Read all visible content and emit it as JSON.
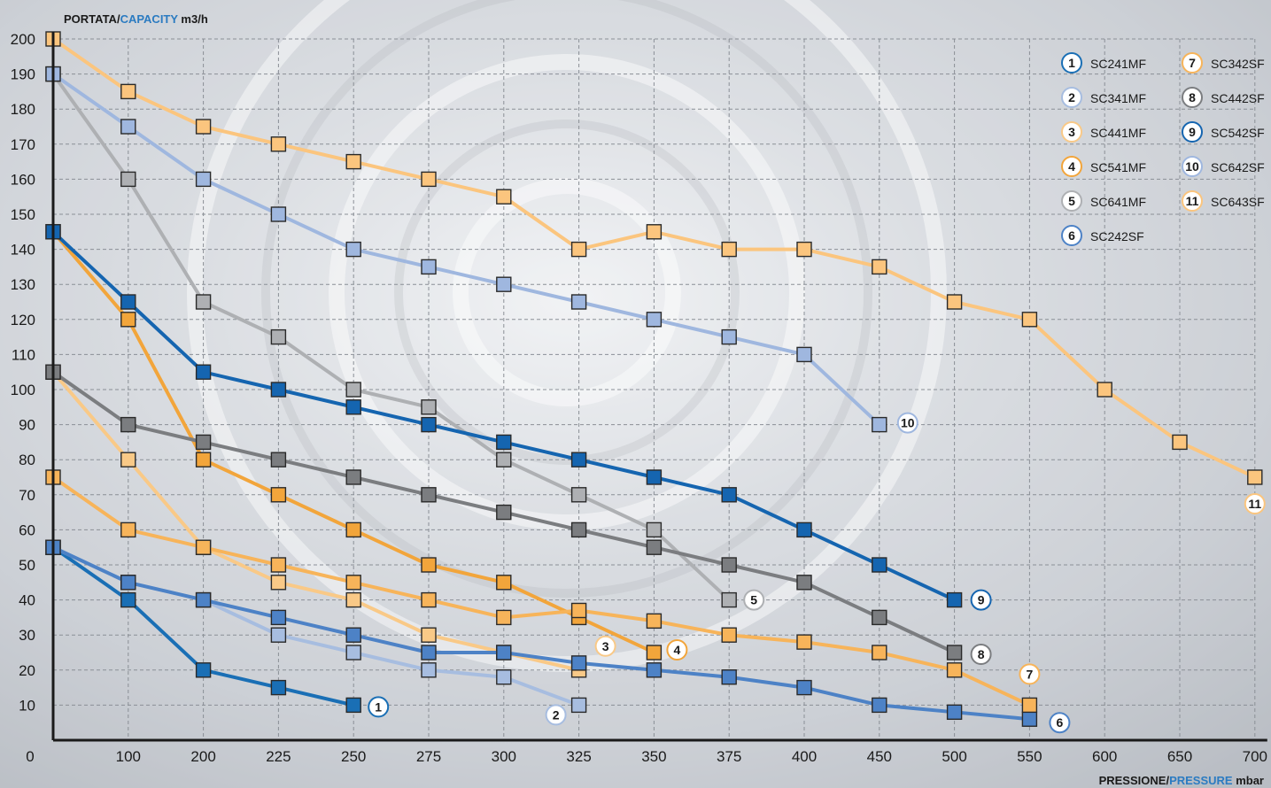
{
  "chart_data": {
    "type": "line",
    "ylabel_parts": [
      "PORTATA",
      "/",
      "CAPACITY",
      " m3/h"
    ],
    "xlabel_parts": [
      "PRESSIONE",
      "/",
      "PRESSURE",
      " mbar"
    ],
    "x_tick_labels": [
      "0",
      "100",
      "200",
      "225",
      "250",
      "275",
      "300",
      "325",
      "350",
      "375",
      "400",
      "450",
      "500",
      "550",
      "600",
      "650",
      "700"
    ],
    "y_ticks": [
      10,
      20,
      30,
      40,
      50,
      60,
      70,
      80,
      90,
      100,
      110,
      120,
      130,
      140,
      150,
      160,
      170,
      180,
      190,
      200
    ],
    "ylim": [
      0,
      200
    ],
    "grid": true,
    "legend_position": "top-right",
    "colors": {
      "accent": "#2b7bc1",
      "axis": "#1a1a1a"
    },
    "series": [
      {
        "name": "SC241MF",
        "number": "1",
        "color": "#1a6fb5",
        "line_width": 4,
        "x": [
          "0",
          "100",
          "200",
          "225",
          "250"
        ],
        "y": [
          55,
          40,
          20,
          15,
          10
        ]
      },
      {
        "name": "SC341MF",
        "number": "2",
        "color": "#a7bde0",
        "line_width": 4,
        "x": [
          "0",
          "100",
          "200",
          "225",
          "250",
          "275",
          "300",
          "325"
        ],
        "y": [
          55,
          45,
          40,
          30,
          25,
          20,
          18,
          10
        ]
      },
      {
        "name": "SC441MF",
        "number": "3",
        "color": "#f9c987",
        "line_width": 4,
        "x": [
          "0",
          "100",
          "200",
          "225",
          "250",
          "275",
          "300",
          "325"
        ],
        "y": [
          105,
          80,
          55,
          45,
          40,
          30,
          25,
          20
        ]
      },
      {
        "name": "SC541MF",
        "number": "4",
        "color": "#f2a53b",
        "line_width": 4,
        "x": [
          "0",
          "100",
          "200",
          "225",
          "250",
          "275",
          "300",
          "325",
          "350"
        ],
        "y": [
          145,
          120,
          80,
          70,
          60,
          50,
          45,
          35,
          25
        ]
      },
      {
        "name": "SC641MF",
        "number": "5",
        "color": "#aeb0b3",
        "line_width": 4,
        "x": [
          "0",
          "100",
          "200",
          "225",
          "250",
          "275",
          "300",
          "325",
          "350",
          "375"
        ],
        "y": [
          190,
          160,
          125,
          115,
          100,
          95,
          80,
          70,
          60,
          40
        ]
      },
      {
        "name": "SC242SF",
        "number": "6",
        "color": "#4d82c6",
        "line_width": 4,
        "x": [
          "0",
          "100",
          "200",
          "225",
          "250",
          "275",
          "300",
          "325",
          "350",
          "375",
          "400",
          "450",
          "500",
          "550"
        ],
        "y": [
          55,
          45,
          40,
          35,
          30,
          25,
          25,
          22,
          20,
          18,
          15,
          10,
          8,
          6
        ]
      },
      {
        "name": "SC342SF",
        "number": "7",
        "color": "#f7b45a",
        "line_width": 4,
        "x": [
          "0",
          "100",
          "200",
          "225",
          "250",
          "275",
          "300",
          "325",
          "350",
          "375",
          "400",
          "450",
          "500",
          "550"
        ],
        "y": [
          75,
          60,
          55,
          50,
          45,
          40,
          35,
          37,
          34,
          30,
          28,
          25,
          20,
          10
        ]
      },
      {
        "name": "SC442SF",
        "number": "8",
        "color": "#7b7d80",
        "line_width": 4,
        "x": [
          "0",
          "100",
          "200",
          "225",
          "250",
          "275",
          "300",
          "325",
          "350",
          "375",
          "400",
          "450",
          "500"
        ],
        "y": [
          105,
          90,
          85,
          80,
          75,
          70,
          65,
          60,
          55,
          50,
          45,
          35,
          25
        ]
      },
      {
        "name": "SC542SF",
        "number": "9",
        "color": "#1565b0",
        "line_width": 4,
        "x": [
          "0",
          "100",
          "200",
          "225",
          "250",
          "275",
          "300",
          "325",
          "350",
          "375",
          "400",
          "450",
          "500"
        ],
        "y": [
          145,
          125,
          105,
          100,
          95,
          90,
          85,
          80,
          75,
          70,
          60,
          50,
          40
        ]
      },
      {
        "name": "SC642SF",
        "number": "10",
        "color": "#9fb7df",
        "line_width": 4,
        "x": [
          "0",
          "100",
          "200",
          "225",
          "250",
          "275",
          "300",
          "325",
          "350",
          "375",
          "400",
          "450"
        ],
        "y": [
          190,
          175,
          160,
          150,
          140,
          135,
          130,
          125,
          120,
          115,
          110,
          90
        ]
      },
      {
        "name": "SC643SF",
        "number": "11",
        "color": "#fbc57e",
        "line_width": 4,
        "x": [
          "0",
          "100",
          "200",
          "225",
          "250",
          "275",
          "300",
          "325",
          "350",
          "375",
          "400",
          "450",
          "500",
          "550",
          "600",
          "650",
          "700"
        ],
        "y": [
          200,
          185,
          175,
          170,
          165,
          160,
          155,
          140,
          145,
          140,
          140,
          135,
          125,
          120,
          100,
          85,
          75
        ]
      }
    ]
  }
}
